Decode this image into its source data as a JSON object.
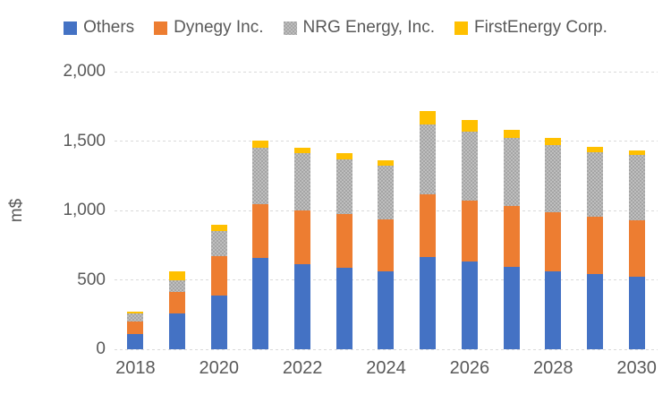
{
  "chart_data": {
    "type": "bar",
    "stacked": true,
    "ylabel": "m$",
    "ylim": [
      0,
      2000
    ],
    "ytick_step": 500,
    "ytick_labels": [
      "0",
      "500",
      "1,000",
      "1,500",
      "2,000"
    ],
    "categories": [
      "2018",
      "2019",
      "2020",
      "2021",
      "2022",
      "2023",
      "2024",
      "2025",
      "2026",
      "2027",
      "2028",
      "2029",
      "2030"
    ],
    "x_tick_labels": [
      "2018",
      "2020",
      "2022",
      "2024",
      "2026",
      "2028",
      "2030"
    ],
    "x_ticks_every": 2,
    "legend_position": "top",
    "grid": "horizontal-dashed",
    "series": [
      {
        "name": "Others",
        "color": "#4472C4",
        "values": [
          110,
          260,
          390,
          655,
          610,
          590,
          560,
          665,
          630,
          595,
          560,
          540,
          520
        ]
      },
      {
        "name": "Dynegy Inc.",
        "color": "#ED7D31",
        "values": [
          90,
          155,
          280,
          390,
          390,
          385,
          375,
          450,
          440,
          440,
          430,
          415,
          410
        ]
      },
      {
        "name": "NRG Energy, Inc.",
        "color": "#A5A5A5",
        "pattern": "checker",
        "values": [
          60,
          85,
          185,
          410,
          410,
          390,
          385,
          505,
          495,
          485,
          480,
          465,
          470
        ]
      },
      {
        "name": "FirstEnergy Corp.",
        "color": "#FFC000",
        "values": [
          10,
          60,
          40,
          50,
          45,
          45,
          40,
          95,
          85,
          60,
          50,
          40,
          30
        ]
      }
    ]
  },
  "styles": {
    "text_color": "#595959",
    "grid_color": "#D9D9D9",
    "background": "#FFFFFF"
  }
}
